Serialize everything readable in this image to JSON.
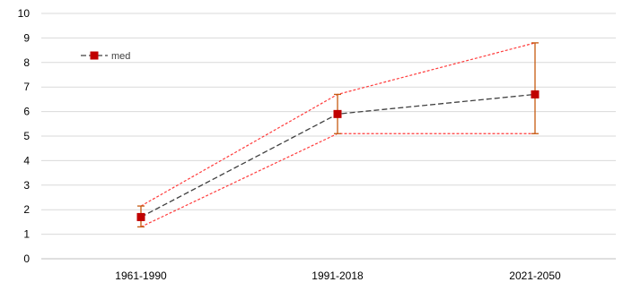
{
  "chart_data": {
    "type": "line",
    "title": "",
    "xlabel": "",
    "ylabel": "",
    "ylim": [
      0,
      10
    ],
    "yticks": [
      0,
      1,
      2,
      3,
      4,
      5,
      6,
      7,
      8,
      9,
      10
    ],
    "categories": [
      "1961-1990",
      "1991-2018",
      "2021-2050"
    ],
    "series": [
      {
        "name": "med",
        "values": [
          1.7,
          5.9,
          6.7
        ],
        "error_low": [
          1.3,
          5.1,
          5.1
        ],
        "error_high": [
          2.15,
          6.7,
          8.8
        ],
        "marker": "square",
        "line_style": "dashed"
      }
    ],
    "bound_lines": {
      "upper": [
        2.15,
        6.7,
        8.8
      ],
      "lower": [
        1.3,
        5.1,
        5.1
      ],
      "line_style": "dotted"
    },
    "grid": true,
    "legend": {
      "position": "top-left",
      "entries": [
        "med"
      ]
    },
    "colors": {
      "marker": "#c00000",
      "median_line": "#404040",
      "bounds": "#ff3b3b",
      "error_bars": "#c55a11",
      "grid": "#d9d9d9",
      "axis": "#bfbfbf",
      "text": "#000000"
    }
  }
}
